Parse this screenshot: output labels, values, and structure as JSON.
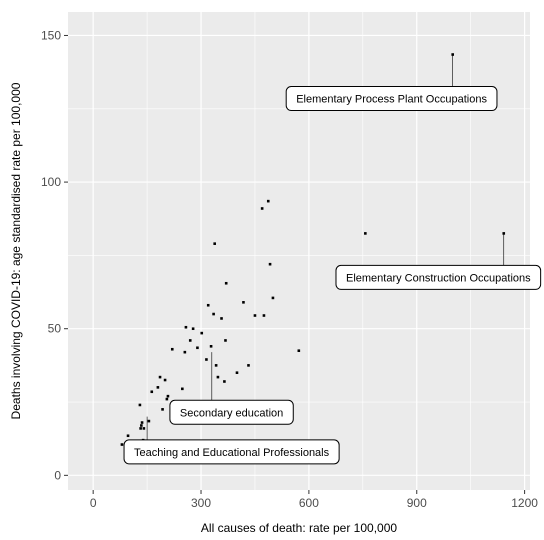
{
  "chart_data": {
    "type": "scatter",
    "title": "",
    "xlabel": "All causes of death: rate per 100,000",
    "ylabel": "Deaths involving COVID-19: age standardised rate per 100,000",
    "xlim": [
      -70,
      1215
    ],
    "ylim": [
      -5,
      158
    ],
    "x_ticks": [
      0,
      300,
      600,
      900,
      1200
    ],
    "y_ticks": [
      0,
      50,
      100,
      150
    ],
    "grid": true,
    "legend": "none",
    "colors": {
      "panel": "#ebebeb",
      "grid": "#ffffff",
      "point": "#000000",
      "label_border": "#000000",
      "label_fill": "#ffffff"
    },
    "points": [
      {
        "x": 80,
        "y": 10.5
      },
      {
        "x": 92,
        "y": 11
      },
      {
        "x": 97,
        "y": 13.5
      },
      {
        "x": 130,
        "y": 24
      },
      {
        "x": 132,
        "y": 16
      },
      {
        "x": 134,
        "y": 17
      },
      {
        "x": 136,
        "y": 18
      },
      {
        "x": 139,
        "y": 12
      },
      {
        "x": 141,
        "y": 16
      },
      {
        "x": 155,
        "y": 18.5
      },
      {
        "x": 163,
        "y": 28.5
      },
      {
        "x": 180,
        "y": 30
      },
      {
        "x": 186,
        "y": 33.5
      },
      {
        "x": 193,
        "y": 22.5
      },
      {
        "x": 200,
        "y": 32.5
      },
      {
        "x": 205,
        "y": 26
      },
      {
        "x": 208,
        "y": 27
      },
      {
        "x": 220,
        "y": 43
      },
      {
        "x": 248,
        "y": 29.5
      },
      {
        "x": 255,
        "y": 42
      },
      {
        "x": 258,
        "y": 50.5
      },
      {
        "x": 270,
        "y": 46
      },
      {
        "x": 278,
        "y": 50
      },
      {
        "x": 290,
        "y": 43.5
      },
      {
        "x": 302,
        "y": 48.5
      },
      {
        "x": 315,
        "y": 39.5
      },
      {
        "x": 320,
        "y": 58
      },
      {
        "x": 328,
        "y": 44
      },
      {
        "x": 335,
        "y": 55
      },
      {
        "x": 338,
        "y": 79
      },
      {
        "x": 342,
        "y": 37.5
      },
      {
        "x": 347,
        "y": 33.5
      },
      {
        "x": 357,
        "y": 53.5
      },
      {
        "x": 365,
        "y": 32
      },
      {
        "x": 368,
        "y": 46
      },
      {
        "x": 370,
        "y": 65.5
      },
      {
        "x": 400,
        "y": 35
      },
      {
        "x": 418,
        "y": 59
      },
      {
        "x": 432,
        "y": 37.5
      },
      {
        "x": 450,
        "y": 54.5
      },
      {
        "x": 470,
        "y": 91
      },
      {
        "x": 475,
        "y": 54.5
      },
      {
        "x": 487,
        "y": 93.5
      },
      {
        "x": 492,
        "y": 72
      },
      {
        "x": 500,
        "y": 60.5
      },
      {
        "x": 572,
        "y": 42.5
      },
      {
        "x": 757,
        "y": 82.5
      },
      {
        "x": 1000,
        "y": 143.5
      },
      {
        "x": 1142,
        "y": 82.5
      }
    ],
    "annotations": [
      {
        "label": "Elementary Process Plant Occupations",
        "x": 1000,
        "y": 143.5,
        "label_x": 830,
        "label_y": 128.5
      },
      {
        "label": "Elementary Construction Occupations",
        "x": 1142,
        "y": 82.5,
        "label_x": 960,
        "label_y": 67.5
      },
      {
        "label": "Secondary education",
        "x": 330,
        "y": 42,
        "label_x": 385,
        "label_y": 21.5
      },
      {
        "label": "Teaching and Educational Professionals",
        "x": 150,
        "y": 20,
        "label_x": 385,
        "label_y": 8
      }
    ]
  }
}
